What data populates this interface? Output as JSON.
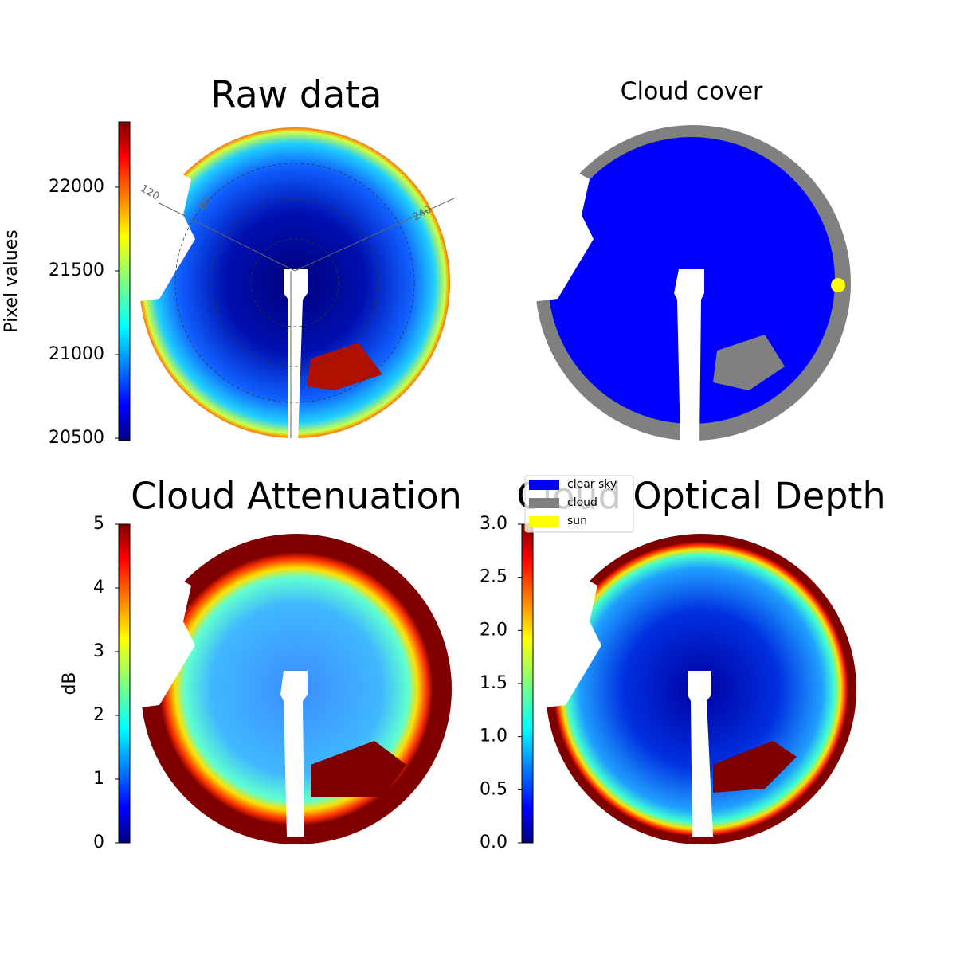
{
  "chart_data": [
    {
      "type": "heatmap",
      "title": "Raw data",
      "colorbar_label": "Pixel values",
      "colormap": "jet",
      "clim": [
        20486,
        22390
      ],
      "ticks": [
        20500,
        21000,
        21500,
        22000
      ],
      "annotations": [
        "120",
        "80",
        "240"
      ]
    },
    {
      "type": "classification",
      "title": "Cloud cover",
      "series": [
        {
          "name": "clear sky",
          "color": "#0000ff"
        },
        {
          "name": "cloud",
          "color": "#808080"
        },
        {
          "name": "sun",
          "color": "#ffff00"
        }
      ]
    },
    {
      "type": "heatmap",
      "title": "Cloud Attenuation",
      "colorbar_label": "dB",
      "colormap": "jet",
      "clim": [
        0,
        5
      ],
      "ticks": [
        0,
        1,
        2,
        3,
        4,
        5
      ]
    },
    {
      "type": "heatmap",
      "title": "Cloud Optical Depth",
      "colormap": "jet",
      "clim": [
        0,
        3
      ],
      "ticks": [
        {
          "value": 0,
          "label": "0.0"
        },
        {
          "value": 0.5,
          "label": "0.5"
        },
        {
          "value": 1,
          "label": "1.0"
        },
        {
          "value": 1.5,
          "label": "1.5"
        },
        {
          "value": 2,
          "label": "2.0"
        },
        {
          "value": 2.5,
          "label": "2.5"
        },
        {
          "value": 3,
          "label": "3.0"
        }
      ]
    }
  ]
}
